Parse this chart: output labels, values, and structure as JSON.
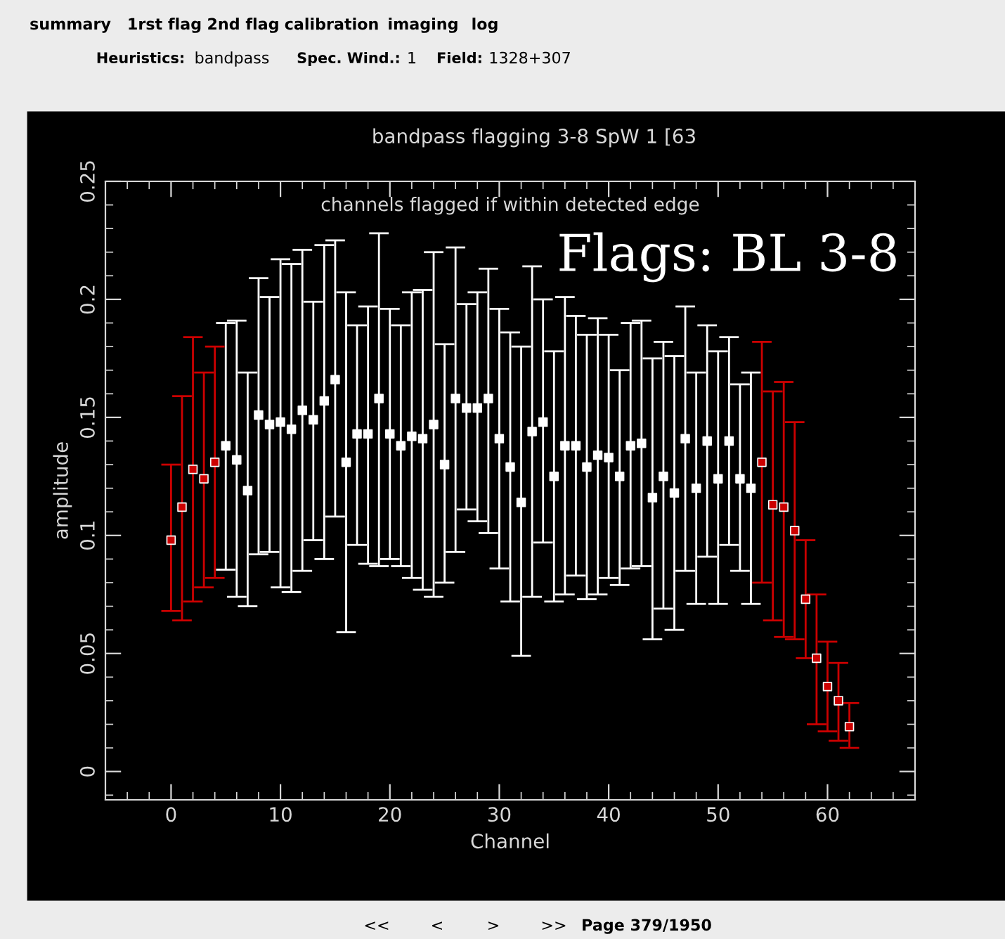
{
  "chart_data": {
    "type": "scatter",
    "title": "bandpass flagging 3-8 SpW 1 [63",
    "subtitle": "channels flagged if within detected edge",
    "xlabel": "Channel",
    "ylabel": "amplitude",
    "xlim": [
      -6,
      68
    ],
    "xticks": [
      0,
      10,
      20,
      30,
      40,
      50,
      60
    ],
    "ylim": [
      -0.012,
      0.25
    ],
    "yticks": [
      0,
      0.05,
      0.1,
      0.15,
      0.2,
      0.25
    ],
    "marker": "square",
    "grid": false,
    "series": [
      {
        "color": "#ffffff",
        "x": [
          5,
          6,
          7,
          8,
          9,
          10,
          11,
          12,
          13,
          14,
          15,
          16,
          17,
          18,
          19,
          20,
          21,
          22,
          23,
          24,
          25,
          26,
          27,
          28,
          29,
          30,
          31,
          32,
          33,
          34,
          35,
          36,
          37,
          38,
          39,
          40,
          41,
          42,
          43,
          44,
          45,
          46,
          47,
          48,
          49,
          50,
          51,
          52,
          53
        ],
        "values": [
          0.138,
          0.132,
          0.119,
          0.151,
          0.147,
          0.148,
          0.145,
          0.153,
          0.149,
          0.157,
          0.166,
          0.131,
          0.143,
          0.143,
          0.158,
          0.143,
          0.138,
          0.142,
          0.141,
          0.147,
          0.13,
          0.158,
          0.154,
          0.154,
          0.158,
          0.141,
          0.129,
          0.114,
          0.144,
          0.148,
          0.125,
          0.138,
          0.138,
          0.129,
          0.134,
          0.133,
          0.125,
          0.138,
          0.139,
          0.116,
          0.125,
          0.118,
          0.141,
          0.12,
          0.14,
          0.124,
          0.14,
          0.124,
          0.12
        ],
        "errors": [
          [
            0.0855,
            0.19
          ],
          [
            0.074,
            0.191
          ],
          [
            0.07,
            0.169
          ],
          [
            0.092,
            0.209
          ],
          [
            0.093,
            0.201
          ],
          [
            0.078,
            0.217
          ],
          [
            0.076,
            0.215
          ],
          [
            0.085,
            0.221
          ],
          [
            0.098,
            0.199
          ],
          [
            0.09,
            0.223
          ],
          [
            0.108,
            0.225
          ],
          [
            0.059,
            0.203
          ],
          [
            0.096,
            0.189
          ],
          [
            0.088,
            0.197
          ],
          [
            0.087,
            0.228
          ],
          [
            0.09,
            0.196
          ],
          [
            0.087,
            0.189
          ],
          [
            0.082,
            0.203
          ],
          [
            0.077,
            0.204
          ],
          [
            0.074,
            0.22
          ],
          [
            0.08,
            0.181
          ],
          [
            0.093,
            0.222
          ],
          [
            0.111,
            0.198
          ],
          [
            0.106,
            0.203
          ],
          [
            0.101,
            0.213
          ],
          [
            0.086,
            0.196
          ],
          [
            0.072,
            0.186
          ],
          [
            0.049,
            0.18
          ],
          [
            0.074,
            0.214
          ],
          [
            0.097,
            0.2
          ],
          [
            0.072,
            0.178
          ],
          [
            0.075,
            0.201
          ],
          [
            0.083,
            0.193
          ],
          [
            0.073,
            0.185
          ],
          [
            0.075,
            0.192
          ],
          [
            0.082,
            0.185
          ],
          [
            0.079,
            0.17
          ],
          [
            0.086,
            0.19
          ],
          [
            0.087,
            0.191
          ],
          [
            0.056,
            0.175
          ],
          [
            0.069,
            0.182
          ],
          [
            0.06,
            0.176
          ],
          [
            0.085,
            0.197
          ],
          [
            0.071,
            0.169
          ],
          [
            0.091,
            0.189
          ],
          [
            0.071,
            0.178
          ],
          [
            0.096,
            0.184
          ],
          [
            0.085,
            0.164
          ],
          [
            0.071,
            0.169
          ]
        ]
      },
      {
        "color": "#cc0000",
        "x": [
          0,
          1,
          2,
          3,
          4,
          54,
          55,
          56,
          57,
          58,
          59,
          60,
          61,
          62
        ],
        "values": [
          0.098,
          0.112,
          0.128,
          0.124,
          0.131,
          0.131,
          0.113,
          0.112,
          0.102,
          0.073,
          0.048,
          0.036,
          0.03,
          0.019
        ],
        "errors": [
          [
            0.068,
            0.13
          ],
          [
            0.064,
            0.159
          ],
          [
            0.072,
            0.184
          ],
          [
            0.078,
            0.169
          ],
          [
            0.082,
            0.18
          ],
          [
            0.08,
            0.182
          ],
          [
            0.064,
            0.161
          ],
          [
            0.057,
            0.165
          ],
          [
            0.056,
            0.148
          ],
          [
            0.048,
            0.098
          ],
          [
            0.02,
            0.075
          ],
          [
            0.017,
            0.055
          ],
          [
            0.013,
            0.046
          ],
          [
            0.01,
            0.029
          ]
        ]
      }
    ],
    "annotations": [
      "Flags: BL 3-8",
      "summary",
      "1rst flag",
      "2nd flag",
      "calibration",
      "imaging",
      "log",
      "Heuristics:",
      "bandpass",
      "Spec. Wind.:",
      "1",
      "Field:",
      "1328+307",
      "<<",
      "<",
      ">",
      ">>",
      "Page 379/1950"
    ]
  }
}
